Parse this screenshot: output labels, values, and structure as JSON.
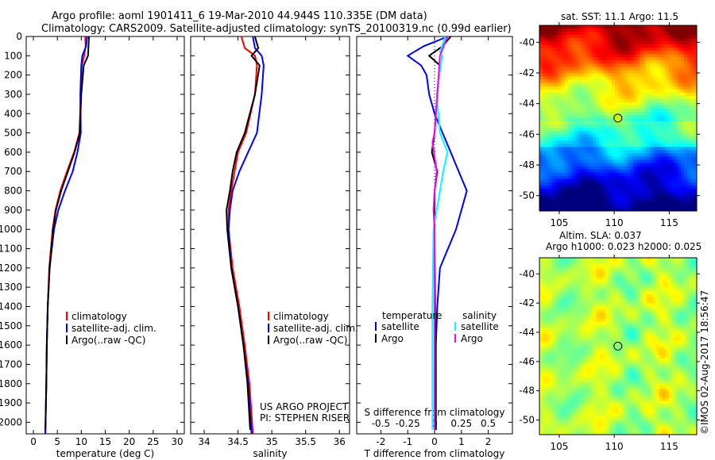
{
  "title_line1": "Argo profile: aoml 1901411_6 19-Mar-2010 44.944S 110.335E (DM data)",
  "title_line2": "Climatology: CARS2009. Satellite-adjusted climatology: synTS_20100319.nc (0.99d earlier)",
  "credit": "US ARGO PROJECT",
  "pi": "PI: STEPHEN RISER",
  "imos": "©IMOS 02-Aug-2017 18:56:47",
  "colors": {
    "climatology": "#ff0000",
    "satellite": "#0000ff",
    "argo": "#000000",
    "sal_satellite": "#00ffff",
    "sal_argo": "#ff00ff"
  },
  "chart_data": [
    {
      "type": "line",
      "name": "temperature",
      "xlabel": "temperature (deg C)",
      "xlim": [
        -1.5,
        31.5
      ],
      "xticks": [
        0,
        5,
        10,
        15,
        20,
        25,
        30
      ],
      "ylim": [
        2060,
        0
      ],
      "yticks": [
        0,
        100,
        200,
        300,
        400,
        500,
        600,
        700,
        800,
        900,
        1000,
        1100,
        1200,
        1300,
        1400,
        1500,
        1600,
        1700,
        1800,
        1900,
        2000
      ],
      "legend": [
        "climatology",
        "satellite-adj. clim.",
        "Argo(..raw -QC)"
      ],
      "series": [
        {
          "name": "climatology",
          "color": "#ff0000",
          "depth": [
            0,
            50,
            100,
            150,
            300,
            500,
            600,
            700,
            800,
            900,
            1000,
            1200,
            1400,
            1600,
            1800,
            2060
          ],
          "values": [
            10.8,
            10.9,
            10.6,
            10.1,
            9.9,
            9.6,
            8.5,
            7.0,
            5.6,
            4.6,
            4.0,
            3.3,
            3.0,
            2.8,
            2.7,
            2.5
          ]
        },
        {
          "name": "satellite-adj. clim.",
          "color": "#0000ff",
          "depth": [
            0,
            50,
            100,
            150,
            300,
            500,
            600,
            700,
            800,
            900,
            1000,
            1200,
            1400,
            1600,
            1800,
            2060
          ],
          "values": [
            11.2,
            11.0,
            10.2,
            10.0,
            9.8,
            9.9,
            9.2,
            8.2,
            6.6,
            5.2,
            4.3,
            3.4,
            3.0,
            2.8,
            2.7,
            2.5
          ]
        },
        {
          "name": "Argo(..raw -QC)",
          "color": "#000000",
          "depth": [
            0,
            50,
            100,
            150,
            300,
            500,
            600,
            700,
            800,
            900,
            1000,
            1200,
            1400,
            1600,
            1800,
            2040
          ],
          "values": [
            11.6,
            11.5,
            11.4,
            10.5,
            10.0,
            9.7,
            8.6,
            7.2,
            5.8,
            4.7,
            4.1,
            3.4,
            3.0,
            2.8,
            2.7,
            2.5
          ]
        }
      ]
    },
    {
      "type": "line",
      "name": "salinity",
      "xlabel": "salinity",
      "xlim": [
        33.8,
        36.15
      ],
      "xticks": [
        34,
        34.5,
        35,
        35.5,
        36
      ],
      "ylim": [
        2060,
        0
      ],
      "legend": [
        "climatology",
        "satellite-adj. clim.",
        "Argo(..raw -QC)"
      ],
      "series": [
        {
          "name": "climatology",
          "color": "#ff0000",
          "depth": [
            0,
            60,
            100,
            150,
            300,
            500,
            600,
            700,
            800,
            900,
            1000,
            1200,
            1400,
            1600,
            1800,
            2060
          ],
          "values": [
            34.55,
            34.6,
            34.75,
            34.78,
            34.75,
            34.62,
            34.5,
            34.45,
            34.4,
            34.36,
            34.36,
            34.42,
            34.52,
            34.6,
            34.67,
            34.72
          ]
        },
        {
          "name": "satellite-adj. clim.",
          "color": "#0000ff",
          "depth": [
            0,
            60,
            100,
            150,
            300,
            500,
            600,
            700,
            800,
            900,
            1000,
            1200,
            1400,
            1600,
            1800,
            2060
          ],
          "values": [
            34.72,
            34.75,
            34.85,
            34.88,
            34.85,
            34.78,
            34.65,
            34.52,
            34.42,
            34.38,
            34.36,
            34.4,
            34.5,
            34.58,
            34.65,
            34.7
          ]
        },
        {
          "name": "Argo(..raw -QC)",
          "color": "#000000",
          "depth": [
            0,
            60,
            100,
            150,
            300,
            500,
            600,
            700,
            800,
            900,
            1000,
            1200,
            1400,
            1600,
            1800,
            2040
          ],
          "values": [
            34.75,
            34.8,
            34.7,
            34.82,
            34.75,
            34.6,
            34.48,
            34.42,
            34.38,
            34.33,
            34.34,
            34.4,
            34.5,
            34.58,
            34.64,
            34.68
          ]
        }
      ]
    },
    {
      "type": "line",
      "name": "difference",
      "xlabel": "T difference from climatology",
      "xlim": [
        -2.9,
        2.9
      ],
      "xticks": [
        -2,
        -1,
        0,
        1,
        2
      ],
      "x2label": "S difference from climatology",
      "x2ticks": [
        "-0.5",
        "-0.25",
        "0",
        "0.25",
        "0.5"
      ],
      "ylim": [
        2060,
        0
      ],
      "legend": {
        "temperature": "temperature",
        "salinity": "salinity",
        "satellite": "satellite",
        "argo": "Argo"
      },
      "series": [
        {
          "name": "T satellite",
          "color": "#0000ff",
          "depth": [
            0,
            50,
            100,
            150,
            200,
            300,
            400,
            500,
            600,
            700,
            800,
            900,
            1000,
            1100,
            1200,
            1400,
            1600,
            2040
          ],
          "values": [
            0.5,
            -0.4,
            -1.0,
            -0.5,
            -0.3,
            -0.2,
            0.0,
            0.3,
            0.6,
            0.9,
            1.2,
            1.0,
            0.8,
            0.5,
            0.2,
            0.1,
            0.05,
            0.05
          ]
        },
        {
          "name": "T Argo",
          "color": "#000000",
          "depth": [
            0,
            50,
            100,
            150,
            300,
            500,
            600,
            700,
            800,
            1000,
            1400,
            2040
          ],
          "values": [
            0.6,
            0.3,
            -0.2,
            0.2,
            0.1,
            0.0,
            -0.1,
            0.1,
            0.0,
            0.0,
            0.02,
            0.05
          ]
        },
        {
          "name": "S satellite",
          "color": "#00ffff",
          "depth": [
            0,
            80,
            100,
            300,
            500,
            600,
            700,
            800,
            900,
            1000,
            1400,
            2040
          ],
          "values": [
            0.4,
            0.2,
            0.28,
            0.08,
            0.2,
            0.48,
            0.32,
            0.2,
            0.08,
            -0.04,
            -0.08,
            -0.08
          ]
        },
        {
          "name": "S Argo",
          "color": "#ff00ff",
          "depth": [
            0,
            100,
            500,
            550,
            700,
            800,
            900,
            1000,
            1600,
            2040
          ],
          "values": [
            0.48,
            0.2,
            0.0,
            -0.08,
            0.08,
            0.0,
            -0.04,
            0.0,
            0.0,
            0.0
          ]
        }
      ]
    },
    {
      "type": "heatmap",
      "name": "sst-map",
      "title": "sat. SST: 11.1 Argo: 11.5",
      "xlim": [
        103.2,
        117.5
      ],
      "ylim": [
        -51,
        -38.9
      ],
      "xticks": [
        105,
        110,
        115
      ],
      "yticks": [
        -40,
        -42,
        -44,
        -46,
        -48,
        -50
      ],
      "marker": {
        "lon": 110.335,
        "lat": -44.944
      }
    },
    {
      "type": "heatmap",
      "name": "sla-map",
      "title1": "Altim. SLA: 0.037",
      "title2": "Argo h1000: 0.023 h2000: 0.025",
      "xlim": [
        103.2,
        117.5
      ],
      "ylim": [
        -51,
        -38.9
      ],
      "xticks": [
        105,
        110,
        115
      ],
      "yticks": [
        -40,
        -42,
        -44,
        -46,
        -48,
        -50
      ],
      "marker": {
        "lon": 110.335,
        "lat": -44.944
      }
    }
  ]
}
